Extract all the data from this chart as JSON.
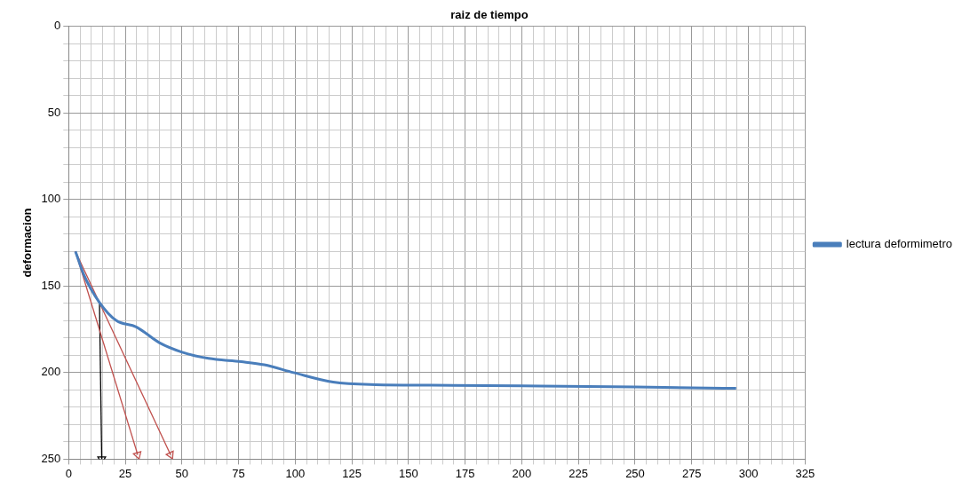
{
  "chart_data": {
    "type": "line",
    "title": "raiz de tiempo",
    "ylabel": "deformacion",
    "xlim": [
      0,
      325
    ],
    "ylim": [
      250,
      0
    ],
    "xticks": [
      0,
      {
        "value": 5,
        "label": null
      },
      {
        "value": 10,
        "label": null
      },
      {
        "value": 15,
        "label": null
      },
      {
        "value": 20,
        "label": null
      },
      25,
      {
        "value": 30,
        "label": null
      },
      {
        "value": 35,
        "label": null
      },
      {
        "value": 40,
        "label": null
      },
      {
        "value": 45,
        "label": null
      },
      50,
      {
        "value": 55,
        "label": null
      },
      {
        "value": 60,
        "label": null
      },
      {
        "value": 65,
        "label": null
      },
      {
        "value": 70,
        "label": null
      },
      75,
      {
        "value": 80,
        "label": null
      },
      {
        "value": 85,
        "label": null
      },
      {
        "value": 90,
        "label": null
      },
      {
        "value": 95,
        "label": null
      },
      100,
      {
        "value": 105,
        "label": null
      },
      {
        "value": 110,
        "label": null
      },
      {
        "value": 115,
        "label": null
      },
      {
        "value": 120,
        "label": null
      },
      125,
      {
        "value": 130,
        "label": null
      },
      {
        "value": 135,
        "label": null
      },
      {
        "value": 140,
        "label": null
      },
      {
        "value": 145,
        "label": null
      },
      150,
      {
        "value": 155,
        "label": null
      },
      {
        "value": 160,
        "label": null
      },
      {
        "value": 165,
        "label": null
      },
      {
        "value": 170,
        "label": null
      },
      175,
      {
        "value": 180,
        "label": null
      },
      {
        "value": 185,
        "label": null
      },
      {
        "value": 190,
        "label": null
      },
      {
        "value": 195,
        "label": null
      },
      200,
      {
        "value": 205,
        "label": null
      },
      {
        "value": 210,
        "label": null
      },
      {
        "value": 215,
        "label": null
      },
      {
        "value": 220,
        "label": null
      },
      225,
      {
        "value": 230,
        "label": null
      },
      {
        "value": 235,
        "label": null
      },
      {
        "value": 240,
        "label": null
      },
      {
        "value": 245,
        "label": null
      },
      250,
      {
        "value": 255,
        "label": null
      },
      {
        "value": 260,
        "label": null
      },
      {
        "value": 265,
        "label": null
      },
      {
        "value": 270,
        "label": null
      },
      275,
      {
        "value": 280,
        "label": null
      },
      {
        "value": 285,
        "label": null
      },
      {
        "value": 290,
        "label": null
      },
      {
        "value": 295,
        "label": null
      },
      300,
      {
        "value": 305,
        "label": null
      },
      {
        "value": 310,
        "label": null
      },
      {
        "value": 315,
        "label": null
      },
      {
        "value": 320,
        "label": null
      },
      325
    ],
    "yticks": [
      0,
      {
        "value": 10,
        "label": null
      },
      {
        "value": 20,
        "label": null
      },
      {
        "value": 30,
        "label": null
      },
      {
        "value": 40,
        "label": null
      },
      50,
      {
        "value": 60,
        "label": null
      },
      {
        "value": 70,
        "label": null
      },
      {
        "value": 80,
        "label": null
      },
      {
        "value": 90,
        "label": null
      },
      100,
      {
        "value": 110,
        "label": null
      },
      {
        "value": 120,
        "label": null
      },
      {
        "value": 130,
        "label": null
      },
      {
        "value": 140,
        "label": null
      },
      150,
      {
        "value": 160,
        "label": null
      },
      {
        "value": 170,
        "label": null
      },
      {
        "value": 180,
        "label": null
      },
      {
        "value": 190,
        "label": null
      },
      200,
      {
        "value": 210,
        "label": null
      },
      {
        "value": 220,
        "label": null
      },
      {
        "value": 230,
        "label": null
      },
      {
        "value": 240,
        "label": null
      },
      250
    ],
    "grid": true,
    "legend": "right",
    "line_style": "solid",
    "series": [
      {
        "name": "lectura deformimetro",
        "color": "#4a7ebb",
        "x": [
          3,
          6.7,
          13.6,
          21.1,
          29.8,
          40,
          50.1,
          61.7,
          76.2,
          86.3,
          99.3,
          116.7,
          135.6,
          160,
          200,
          250,
          294.6
        ],
        "values": [
          130,
          143.5,
          159.5,
          170,
          173.6,
          182.7,
          188.2,
          191.8,
          193.7,
          195.5,
          200,
          205.5,
          207,
          207.3,
          207.7,
          208.3,
          209.1
        ]
      },
      {
        "color": "#c0504d",
        "x": [
          3,
          30.5
        ],
        "values": [
          130,
          247.5
        ]
      },
      {
        "color": "#c0504d",
        "x": [
          3,
          45
        ],
        "values": [
          130,
          247.5
        ]
      },
      {
        "color": "#000000",
        "x": [
          13.6,
          14.6
        ],
        "values": [
          159.5,
          250
        ]
      }
    ]
  }
}
